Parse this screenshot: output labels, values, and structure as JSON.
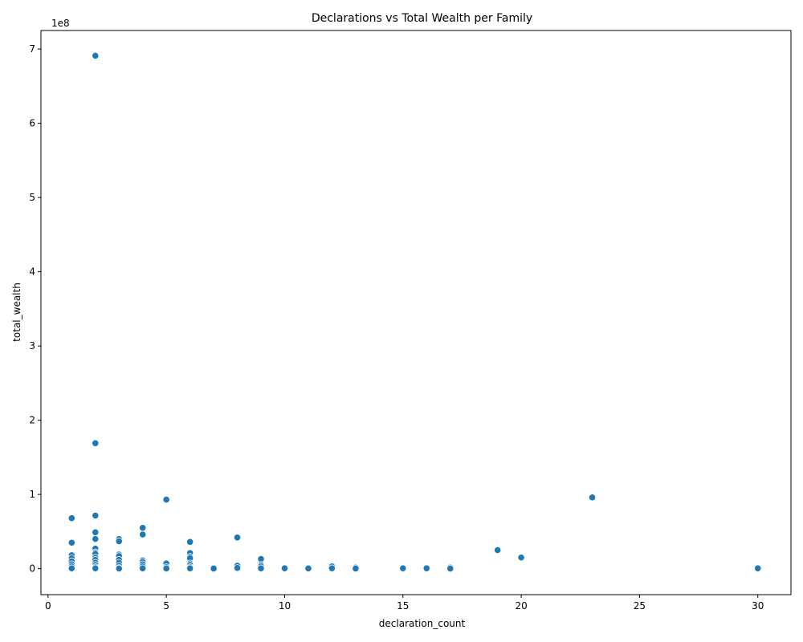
{
  "chart_data": {
    "type": "scatter",
    "title": "Declarations vs Total Wealth per Family",
    "xlabel": "declaration_count",
    "ylabel": "total_wealth",
    "y_offset_text": "1e8",
    "xlim": [
      -0.3,
      31.4
    ],
    "ylim": [
      -0.35,
      7.25
    ],
    "y_scale_factor": 100000000,
    "x_ticks": [
      0,
      5,
      10,
      15,
      20,
      25,
      30
    ],
    "y_ticks": [
      0,
      1,
      2,
      3,
      4,
      5,
      6,
      7
    ],
    "grid": false,
    "color": "#1f77b4",
    "points": [
      {
        "x": 2,
        "y": 6.91
      },
      {
        "x": 2,
        "y": 1.69
      },
      {
        "x": 2,
        "y": 0.715
      },
      {
        "x": 2,
        "y": 0.49
      },
      {
        "x": 2,
        "y": 0.4
      },
      {
        "x": 2,
        "y": 0.27
      },
      {
        "x": 2,
        "y": 0.22
      },
      {
        "x": 2,
        "y": 0.2
      },
      {
        "x": 2,
        "y": 0.15
      },
      {
        "x": 2,
        "y": 0.12
      },
      {
        "x": 2,
        "y": 0.08
      },
      {
        "x": 2,
        "y": 0.05
      },
      {
        "x": 2,
        "y": 0.02
      },
      {
        "x": 2,
        "y": 0.005
      },
      {
        "x": 1,
        "y": 0.68
      },
      {
        "x": 1,
        "y": 0.35
      },
      {
        "x": 1,
        "y": 0.18
      },
      {
        "x": 1,
        "y": 0.14
      },
      {
        "x": 1,
        "y": 0.1
      },
      {
        "x": 1,
        "y": 0.06
      },
      {
        "x": 1,
        "y": 0.03
      },
      {
        "x": 1,
        "y": 0.005
      },
      {
        "x": 3,
        "y": 0.4
      },
      {
        "x": 3,
        "y": 0.37
      },
      {
        "x": 3,
        "y": 0.19
      },
      {
        "x": 3,
        "y": 0.17
      },
      {
        "x": 3,
        "y": 0.12
      },
      {
        "x": 3,
        "y": 0.08
      },
      {
        "x": 3,
        "y": 0.04
      },
      {
        "x": 3,
        "y": 0.01
      },
      {
        "x": 3,
        "y": 0.002
      },
      {
        "x": 4,
        "y": 0.55
      },
      {
        "x": 4,
        "y": 0.46
      },
      {
        "x": 4,
        "y": 0.11
      },
      {
        "x": 4,
        "y": 0.09
      },
      {
        "x": 4,
        "y": 0.06
      },
      {
        "x": 4,
        "y": 0.03
      },
      {
        "x": 4,
        "y": 0.005
      },
      {
        "x": 5,
        "y": 0.93
      },
      {
        "x": 5,
        "y": 0.07
      },
      {
        "x": 5,
        "y": 0.02
      },
      {
        "x": 5,
        "y": 0.003
      },
      {
        "x": 6,
        "y": 0.36
      },
      {
        "x": 6,
        "y": 0.21
      },
      {
        "x": 6,
        "y": 0.16
      },
      {
        "x": 6,
        "y": 0.14
      },
      {
        "x": 6,
        "y": 0.07
      },
      {
        "x": 6,
        "y": 0.05
      },
      {
        "x": 6,
        "y": 0.02
      },
      {
        "x": 6,
        "y": 0.005
      },
      {
        "x": 7,
        "y": 0.01
      },
      {
        "x": 7,
        "y": 0.002
      },
      {
        "x": 8,
        "y": 0.42
      },
      {
        "x": 8,
        "y": 0.04
      },
      {
        "x": 8,
        "y": 0.01
      },
      {
        "x": 9,
        "y": 0.13
      },
      {
        "x": 9,
        "y": 0.05
      },
      {
        "x": 9,
        "y": 0.03
      },
      {
        "x": 9,
        "y": 0.005
      },
      {
        "x": 10,
        "y": 0.005
      },
      {
        "x": 11,
        "y": 0.003
      },
      {
        "x": 12,
        "y": 0.03
      },
      {
        "x": 12,
        "y": 0.005
      },
      {
        "x": 13,
        "y": 0.015
      },
      {
        "x": 13,
        "y": 0.002
      },
      {
        "x": 15,
        "y": 0.005
      },
      {
        "x": 16,
        "y": 0.005
      },
      {
        "x": 17,
        "y": 0.015
      },
      {
        "x": 17,
        "y": 0.002
      },
      {
        "x": 19,
        "y": 0.25
      },
      {
        "x": 20,
        "y": 0.15
      },
      {
        "x": 23,
        "y": 0.96
      },
      {
        "x": 30,
        "y": 0.005
      }
    ]
  }
}
